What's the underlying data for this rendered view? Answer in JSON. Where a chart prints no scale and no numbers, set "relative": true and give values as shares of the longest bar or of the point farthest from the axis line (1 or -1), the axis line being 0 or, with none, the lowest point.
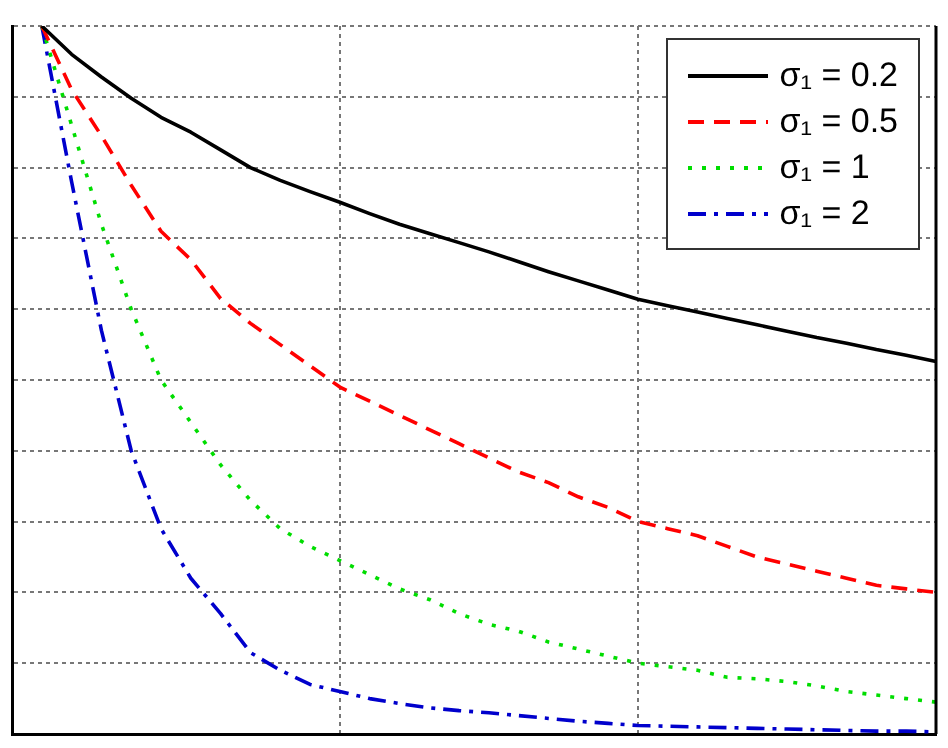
{
  "chart_data": {
    "type": "line",
    "relative": true,
    "grid": true,
    "legend": "top right",
    "marker": "none",
    "categories": [
      null,
      null,
      null,
      null,
      null,
      null,
      null,
      null,
      null,
      null,
      null,
      null,
      null,
      null,
      null,
      null,
      null,
      null,
      null,
      null,
      null,
      null,
      null,
      null,
      null,
      null,
      null,
      null,
      null,
      null,
      null,
      null
    ],
    "series": [
      {
        "name": "σ₁ = 0.2",
        "color": "#000000",
        "line_style": "solid",
        "values": [
          null,
          1,
          0.96,
          0.928,
          0.898,
          0.871,
          0.85,
          0.825,
          0.8,
          0.782,
          0.766,
          0.751,
          0.735,
          0.72,
          0.707,
          0.694,
          0.681,
          0.667,
          0.653,
          0.64,
          0.627,
          0.614,
          0.605,
          0.596,
          0.587,
          0.578,
          0.569,
          0.56,
          0.552,
          0.543,
          0.535,
          0.526
        ]
      },
      {
        "name": "σ₁ = 0.5",
        "color": "#ff0000",
        "line_style": "dashed",
        "values": [
          null,
          1,
          0.91,
          0.845,
          0.775,
          0.71,
          0.67,
          0.615,
          0.58,
          0.55,
          0.52,
          0.49,
          0.47,
          0.45,
          0.43,
          0.41,
          0.39,
          0.37,
          0.355,
          0.335,
          0.32,
          0.3,
          0.29,
          0.28,
          0.265,
          0.25,
          0.24,
          0.23,
          0.22,
          0.21,
          0.205,
          0.2
        ]
      },
      {
        "name": "σ₁ = 1",
        "color": "#00dd00",
        "line_style": "dotted",
        "values": [
          null,
          1,
          0.86,
          0.72,
          0.6,
          0.5,
          0.44,
          0.38,
          0.33,
          0.29,
          0.265,
          0.245,
          0.225,
          0.205,
          0.19,
          0.17,
          0.155,
          0.145,
          0.13,
          0.12,
          0.11,
          0.1,
          0.095,
          0.09,
          0.08,
          0.078,
          0.074,
          0.068,
          0.06,
          0.055,
          0.05,
          0.045
        ]
      },
      {
        "name": "σ₁ = 2",
        "color": "#0000cc",
        "line_style": "dashdot",
        "values": [
          null,
          1,
          0.78,
          0.57,
          0.4,
          0.29,
          0.22,
          0.17,
          0.115,
          0.09,
          0.07,
          0.06,
          0.05,
          0.043,
          0.037,
          0.033,
          0.03,
          0.026,
          0.022,
          0.018,
          0.015,
          0.012,
          0.011,
          0.01,
          0.009,
          0.008,
          0.007,
          0.006,
          0.005,
          0.004,
          0.004,
          0.003
        ]
      }
    ]
  }
}
